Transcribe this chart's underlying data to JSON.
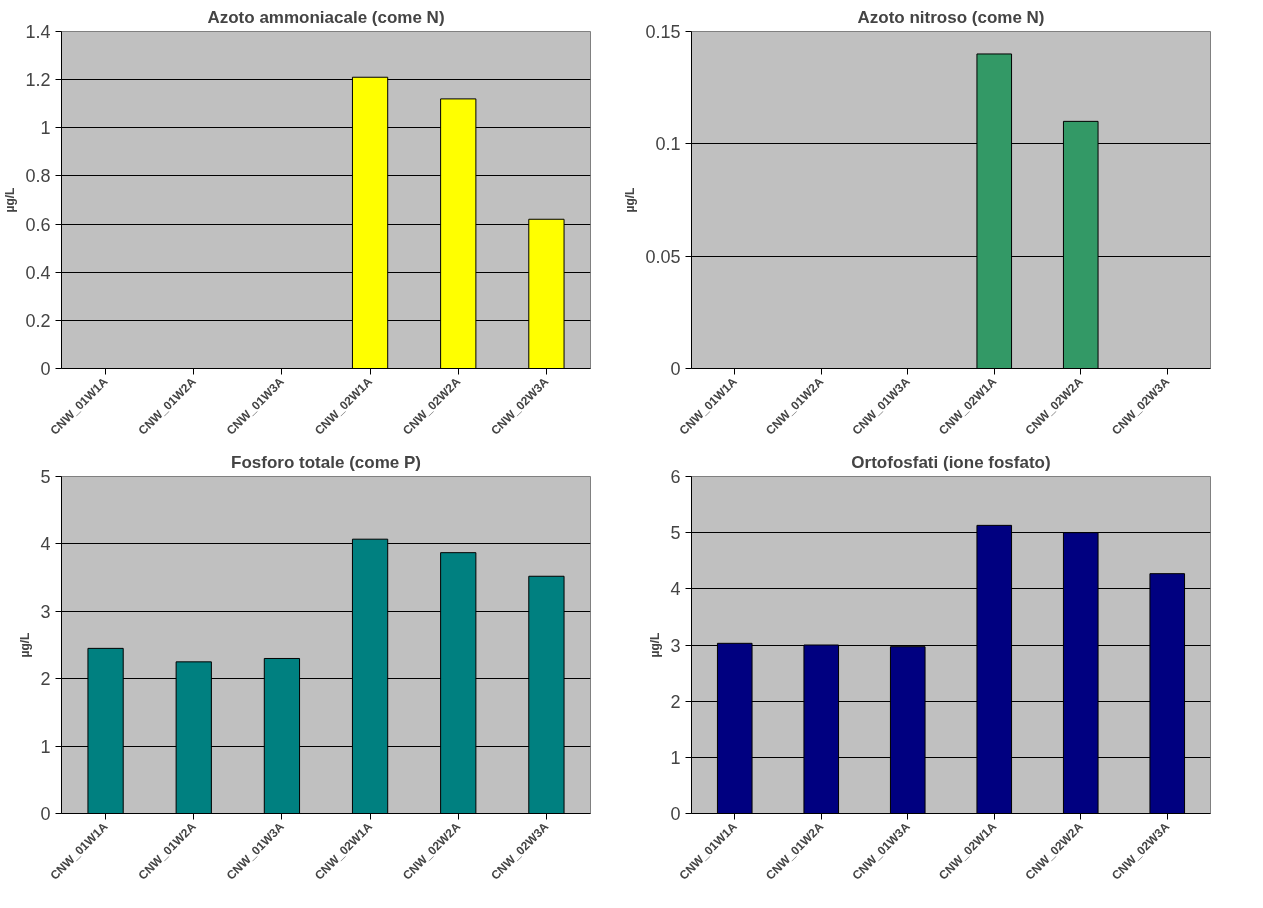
{
  "chart_data": [
    {
      "type": "bar",
      "title": "Azoto ammoniacale (come N)",
      "ylabel": "µg/L",
      "categories": [
        "CNW_01W1A",
        "CNW_01W2A",
        "CNW_01W3A",
        "CNW_02W1A",
        "CNW_02W2A",
        "CNW_02W3A"
      ],
      "values": [
        null,
        null,
        null,
        1.21,
        1.12,
        0.62
      ],
      "color": "#ffff00",
      "ylim": [
        0,
        1.4
      ],
      "yticks": [
        0,
        0.2,
        0.4,
        0.6,
        0.8,
        1,
        1.2,
        1.4
      ],
      "grid": "y"
    },
    {
      "type": "bar",
      "title": "Azoto nitroso (come N)",
      "ylabel": "µg/L",
      "categories": [
        "CNW_01W1A",
        "CNW_01W2A",
        "CNW_01W3A",
        "CNW_02W1A",
        "CNW_02W2A",
        "CNW_02W3A"
      ],
      "values": [
        null,
        null,
        null,
        0.14,
        0.11,
        null
      ],
      "color": "#339966",
      "ylim": [
        0,
        0.15
      ],
      "yticks": [
        0,
        0.05,
        0.1,
        0.15
      ],
      "grid": "y"
    },
    {
      "type": "bar",
      "title": "Fosforo totale (come P)",
      "ylabel": "µg/L",
      "categories": [
        "CNW_01W1A",
        "CNW_01W2A",
        "CNW_01W3A",
        "CNW_02W1A",
        "CNW_02W2A",
        "CNW_02W3A"
      ],
      "values": [
        2.45,
        2.25,
        2.3,
        4.07,
        3.87,
        3.52
      ],
      "color": "#008080",
      "ylim": [
        0,
        5
      ],
      "yticks": [
        0,
        1,
        2,
        3,
        4,
        5
      ],
      "grid": "y"
    },
    {
      "type": "bar",
      "title": "Ortofosfati (ione fosfato)",
      "ylabel": "µg/L",
      "categories": [
        "CNW_01W1A",
        "CNW_01W2A",
        "CNW_01W3A",
        "CNW_02W1A",
        "CNW_02W2A",
        "CNW_02W3A"
      ],
      "values": [
        3.03,
        3.0,
        2.97,
        5.13,
        5.0,
        4.27
      ],
      "color": "#000080",
      "ylim": [
        0,
        6
      ],
      "yticks": [
        0,
        1,
        2,
        3,
        4,
        5,
        6
      ],
      "grid": "y"
    }
  ]
}
